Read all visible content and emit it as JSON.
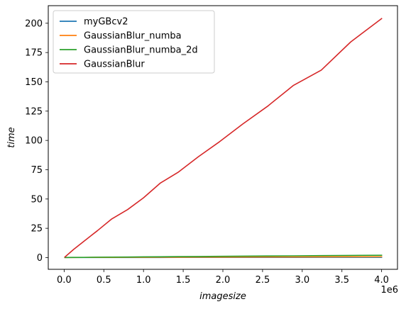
{
  "chart_data": {
    "type": "line",
    "xlabel": "imagesize",
    "ylabel": "time",
    "x_offset_label": "1e6",
    "xlim": [
      -0.2,
      4.2
    ],
    "ylim": [
      -10,
      215
    ],
    "xticks": [
      0.0,
      0.5,
      1.0,
      1.5,
      2.0,
      2.5,
      3.0,
      3.5,
      4.0
    ],
    "xtick_labels": [
      "0.0",
      "0.5",
      "1.0",
      "1.5",
      "2.0",
      "2.5",
      "3.0",
      "3.5",
      "4.0"
    ],
    "yticks": [
      0,
      25,
      50,
      75,
      100,
      125,
      150,
      175,
      200
    ],
    "ytick_labels": [
      "0",
      "25",
      "50",
      "75",
      "100",
      "125",
      "150",
      "175",
      "200"
    ],
    "legend_position": "top-left",
    "grid": false,
    "x": [
      0.01,
      0.12,
      0.25,
      0.42,
      0.6,
      0.8,
      1.0,
      1.21,
      1.44,
      1.69,
      1.96,
      2.25,
      2.56,
      2.89,
      3.24,
      3.61,
      4.0
    ],
    "series": [
      {
        "name": "myGBcv2",
        "color": "#1f77b4",
        "values": [
          0.05,
          0.06,
          0.07,
          0.08,
          0.09,
          0.1,
          0.11,
          0.12,
          0.13,
          0.14,
          0.15,
          0.17,
          0.18,
          0.2,
          0.22,
          0.24,
          0.26
        ]
      },
      {
        "name": "GaussianBlur_numba",
        "color": "#ff7f0e",
        "values": [
          0.1,
          0.12,
          0.14,
          0.17,
          0.2,
          0.23,
          0.27,
          0.3,
          0.34,
          0.38,
          0.42,
          0.47,
          0.52,
          0.57,
          0.62,
          0.68,
          0.74
        ]
      },
      {
        "name": "GaussianBlur_numba_2d",
        "color": "#2ca02c",
        "values": [
          0.1,
          0.15,
          0.2,
          0.3,
          0.4,
          0.5,
          0.6,
          0.7,
          0.85,
          0.95,
          1.1,
          1.2,
          1.35,
          1.5,
          1.7,
          1.85,
          2.0
        ]
      },
      {
        "name": "GaussianBlur",
        "color": "#d62728",
        "values": [
          0.5,
          7,
          14,
          23,
          33,
          41,
          51,
          63.5,
          73,
          86,
          99,
          114,
          129,
          147,
          160,
          184,
          204
        ]
      }
    ]
  }
}
